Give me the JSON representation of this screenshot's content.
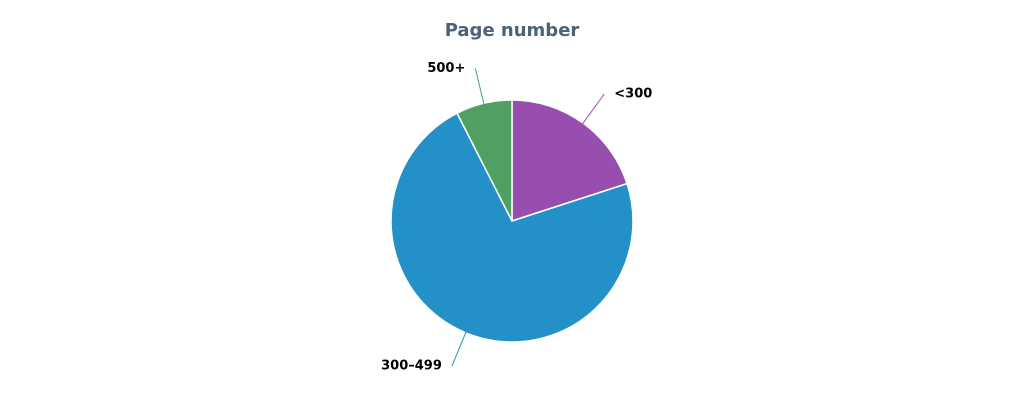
{
  "chart_data": {
    "type": "pie",
    "title": "Page number",
    "categories": [
      "<300",
      "300–499",
      "500+"
    ],
    "values": [
      20,
      72.5,
      7.5
    ],
    "colors": [
      "#984eae",
      "#2490c8",
      "#509f63"
    ]
  }
}
